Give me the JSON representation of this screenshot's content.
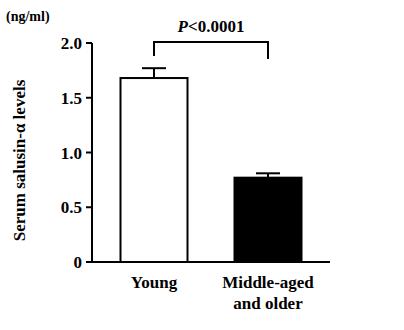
{
  "chart_data": {
    "type": "bar",
    "y_label": "Serum salusin-α levels",
    "y_unit": "(ng/ml)",
    "annotations": [
      "P<0.0001"
    ],
    "categories": [
      "Young",
      "Middle-aged and older"
    ],
    "values": [
      1.68,
      0.77
    ],
    "errors": [
      0.09,
      0.04
    ],
    "colors": [
      "#ffffff",
      "#000000"
    ],
    "ylim": [
      0,
      2.0
    ],
    "yticks": [
      0,
      0.5,
      {
        "value": 1,
        "label": "1.0"
      },
      1.5,
      {
        "value": 2,
        "label": "2.0"
      }
    ],
    "grid": false
  }
}
